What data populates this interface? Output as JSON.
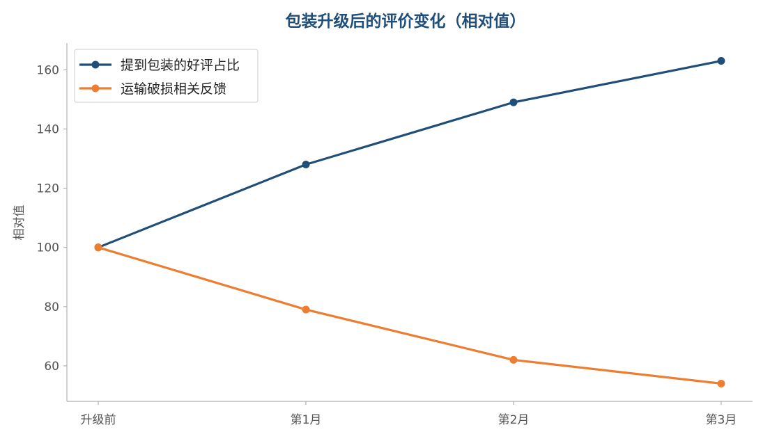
{
  "chart_data": {
    "type": "line",
    "title": "包装升级后的评价变化（相对值）",
    "xlabel": "",
    "ylabel": "相对值",
    "categories": [
      "升级前",
      "第1月",
      "第2月",
      "第3月"
    ],
    "ylim": [
      48,
      169
    ],
    "yticks": [
      60,
      80,
      100,
      120,
      140,
      160
    ],
    "grid": false,
    "legend_position": "top-left",
    "series": [
      {
        "name": "提到包装的好评占比",
        "color": "#1f4e79",
        "values": [
          100,
          128,
          149,
          163
        ]
      },
      {
        "name": "运输破损相关反馈",
        "color": "#ed7d31",
        "values": [
          100,
          79,
          62,
          54
        ]
      }
    ]
  },
  "colors": {
    "title": "#1f4e79",
    "axis": "#b0b0b0",
    "tick_text": "#555555"
  }
}
